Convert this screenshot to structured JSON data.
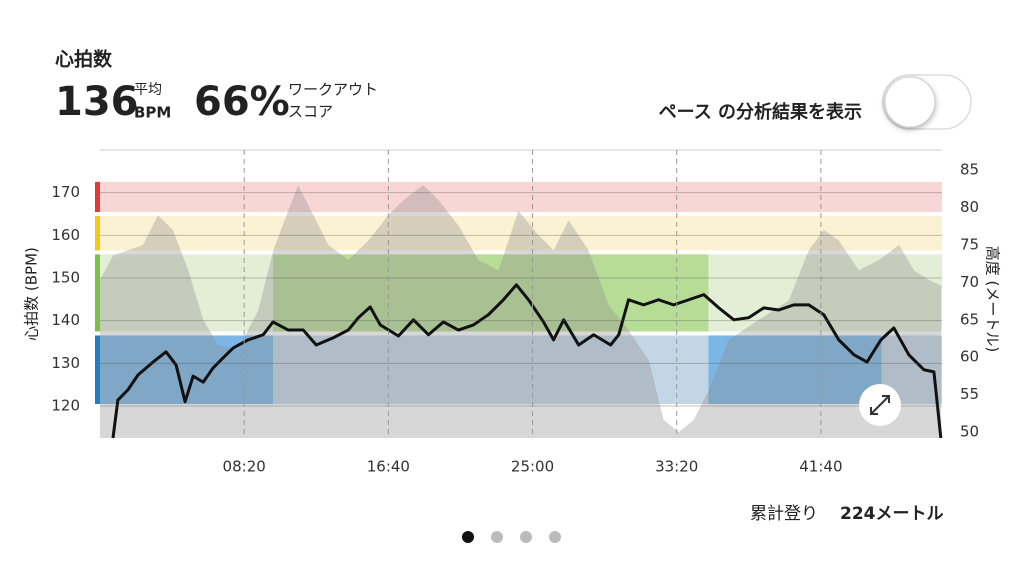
{
  "header": {
    "title": "心拍数",
    "avg_value": "136",
    "avg_label": "平均",
    "avg_unit": "BPM",
    "score_value": "66%",
    "score_label_1": "ワークアウト",
    "score_label_2": "スコア",
    "toggle_label": "ペース の分析結果を表示"
  },
  "chart_data": {
    "type": "line",
    "ylabel": "心拍数 (BPM)",
    "y2label": "高度 (メートル)",
    "xlim": [
      0,
      2920
    ],
    "ylim": [
      112.5,
      180
    ],
    "y2lim": [
      49.2,
      87.7
    ],
    "xticks": [
      {
        "value": 500,
        "label": "08:20"
      },
      {
        "value": 1000,
        "label": "16:40"
      },
      {
        "value": 1500,
        "label": "25:00"
      },
      {
        "value": 2000,
        "label": "33:20"
      },
      {
        "value": 2500,
        "label": "41:40"
      }
    ],
    "yticks": [
      120,
      130,
      140,
      150,
      160,
      170
    ],
    "y2ticks": [
      50,
      55,
      60,
      65,
      70,
      75,
      80,
      85
    ],
    "grid": true,
    "zones": [
      {
        "from": 120,
        "to": 137,
        "color": "#c4d6e6",
        "highlight_color": "#7bb6e6",
        "stripe": "#1f7fc4",
        "highlights": [
          [
            0,
            600
          ],
          [
            2110,
            2710
          ]
        ]
      },
      {
        "from": 137,
        "to": 156,
        "color": "#e3eed6",
        "highlight_color": "#b7dc96",
        "stripe": "#7cc242",
        "highlights": [
          [
            600,
            2110
          ]
        ]
      },
      {
        "from": 156,
        "to": 165,
        "color": "#fbf2d3",
        "highlight_color": "#f7e39a",
        "stripe": "#f5c518",
        "highlights": []
      },
      {
        "from": 165,
        "to": 173,
        "color": "#f9d6d6",
        "highlight_color": "#f2a5a5",
        "stripe": "#e53935",
        "highlights": []
      }
    ],
    "series": [
      {
        "color": "rgba(140,140,140,0.35)",
        "axis": "y2",
        "fill": true,
        "x": [
          0,
          45,
          97,
          149,
          201,
          253,
          306,
          358,
          410,
          479,
          549,
          601,
          653,
          687,
          740,
          792,
          861,
          931,
          1000,
          1052,
          1121,
          1174,
          1243,
          1312,
          1382,
          1451,
          1521,
          1573,
          1625,
          1694,
          1764,
          1833,
          1903,
          1955,
          2007,
          2059,
          2111,
          2180,
          2285,
          2389,
          2458,
          2510,
          2562,
          2632,
          2701,
          2771,
          2823,
          2875,
          2917
        ],
        "values": [
          70.3,
          73.6,
          74.3,
          75,
          79,
          77,
          71.6,
          65,
          61.6,
          61,
          66.3,
          74.3,
          79.6,
          83,
          79,
          75,
          73,
          75.6,
          79,
          81,
          83,
          81,
          77.6,
          73,
          71.6,
          79.6,
          76.3,
          74.3,
          78.3,
          74.3,
          67,
          63.6,
          59.6,
          51.6,
          50,
          51.6,
          55.6,
          62.3,
          65,
          67.6,
          74.3,
          77,
          75.6,
          71.6,
          73,
          75,
          71.6,
          70.3,
          69.6
        ]
      },
      {
        "color": "#111111",
        "x": [
          45,
          62,
          97,
          132,
          184,
          229,
          264,
          295,
          323,
          358,
          392,
          427,
          462,
          514,
          566,
          600,
          653,
          705,
          750,
          809,
          861,
          896,
          937,
          972,
          1035,
          1087,
          1139,
          1191,
          1243,
          1295,
          1347,
          1399,
          1444,
          1486,
          1538,
          1573,
          1608,
          1660,
          1712,
          1771,
          1799,
          1833,
          1885,
          1937,
          1989,
          2042,
          2094,
          2146,
          2198,
          2250,
          2302,
          2354,
          2406,
          2458,
          2510,
          2562,
          2615,
          2660,
          2708,
          2753,
          2805,
          2857,
          2892,
          2916
        ],
        "values": [
          112.5,
          121.4,
          123.8,
          127.3,
          130.3,
          132.7,
          129.6,
          121,
          127,
          125.6,
          128.9,
          131.3,
          133.6,
          135.5,
          136.7,
          139.7,
          137.8,
          137.8,
          134.3,
          136,
          137.8,
          140.7,
          143.2,
          139,
          136.4,
          140.2,
          136.7,
          139.7,
          137.8,
          139,
          141.4,
          144.9,
          148.4,
          144.9,
          139.7,
          135.5,
          140.2,
          134.3,
          136.7,
          134.3,
          136.7,
          144.9,
          143.7,
          144.9,
          143.7,
          144.9,
          146.1,
          143,
          140.2,
          140.7,
          143,
          142.5,
          143.7,
          143.7,
          141.4,
          135.5,
          132,
          130.3,
          135.5,
          138.3,
          132,
          128.5,
          128,
          112.5
        ]
      }
    ]
  },
  "footer": {
    "climb_label": "累計登り",
    "climb_value": "224メートル"
  }
}
